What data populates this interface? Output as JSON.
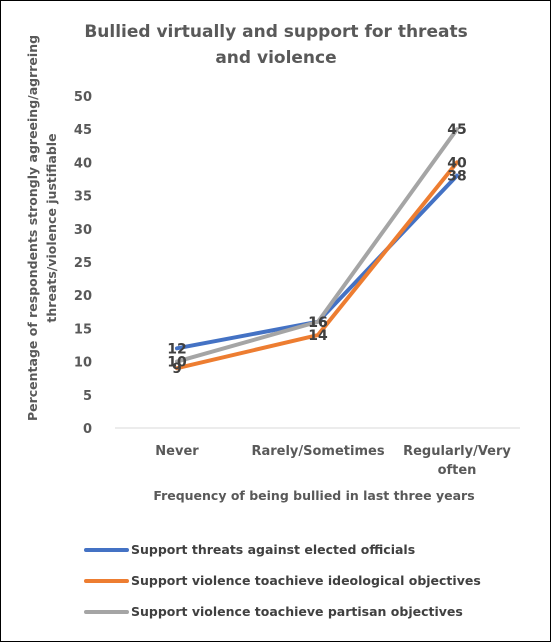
{
  "chart_data": {
    "type": "line",
    "title_lines": [
      "Bullied virtually and support for threats",
      "and violence"
    ],
    "xlabel": "Frequency of  being bullied in last three years",
    "ylabel_lines": [
      "Percentage of respondents strongly agreeing/agrreing",
      "threats/violence justifiable"
    ],
    "categories": [
      [
        "Never"
      ],
      [
        "Rarely/Sometimes"
      ],
      [
        "Regularly/Very",
        "often"
      ]
    ],
    "ylim": [
      0,
      50
    ],
    "yticks": [
      0,
      5,
      10,
      15,
      20,
      25,
      30,
      35,
      40,
      45,
      50
    ],
    "grid": false,
    "legend_position": "bottom",
    "series": [
      {
        "name": "Support threats against elected officials",
        "color": "#4472C4",
        "values": [
          12,
          16,
          38
        ]
      },
      {
        "name": "Support violence toachieve ideological objectives",
        "color": "#ED7D31",
        "values": [
          9,
          14,
          40
        ]
      },
      {
        "name": "Support violence toachieve partisan objectives",
        "color": "#A5A5A5",
        "values": [
          10,
          16,
          45
        ]
      }
    ]
  }
}
